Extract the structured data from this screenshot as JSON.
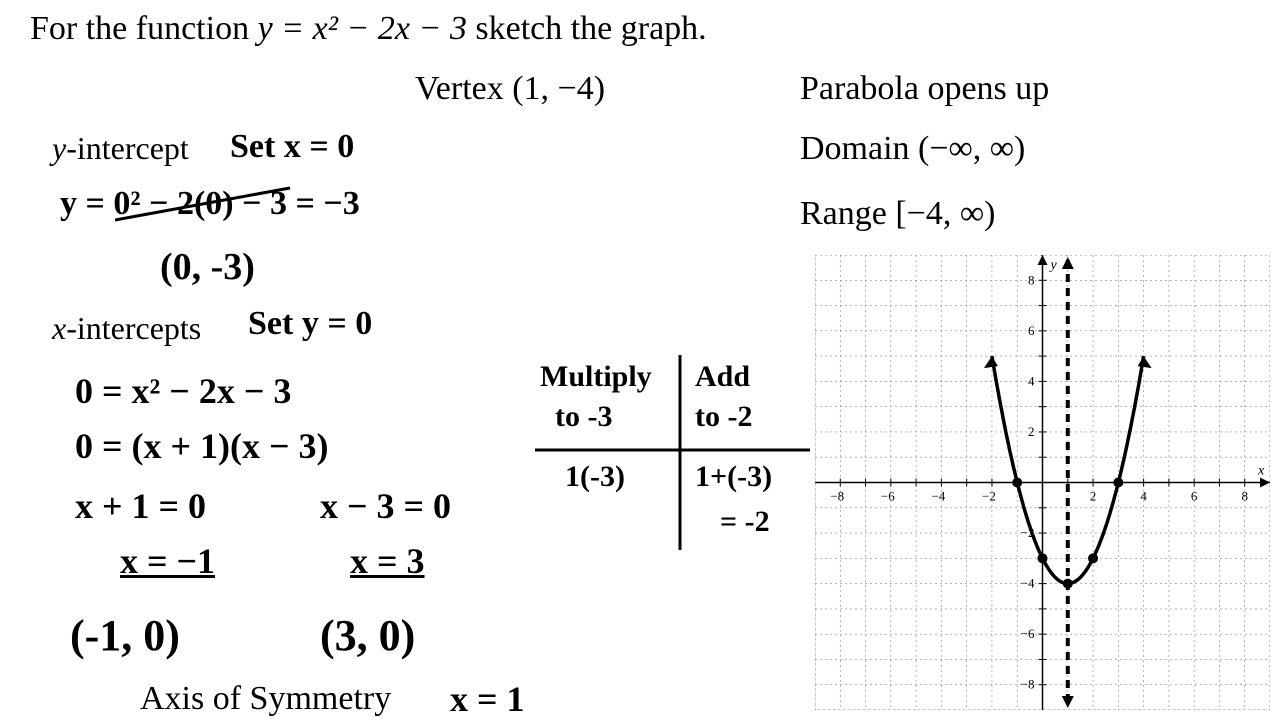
{
  "title_pre": "For the function  ",
  "title_fn": "y = x² − 2x − 3",
  "title_post": "  sketch the graph.",
  "vertex_label": "Vertex   (1, −4)",
  "opens": "Parabola opens up",
  "domain": "Domain   (−∞, ∞)",
  "range": "Range   [−4, ∞)",
  "yint_label": "y-intercept",
  "yint_set": "Set x = 0",
  "yint_eq": "y = 0² − 2(0) − 3  = −3",
  "yint_pt": "(0, -3)",
  "xint_label": "x-intercepts",
  "xint_set": "Set y = 0",
  "xint_eq1": "0 = x² − 2x − 3",
  "xint_eq2": "0 = (x + 1)(x − 3)",
  "xint_eq3a": "x + 1 = 0",
  "xint_eq3b": "x − 3 = 0",
  "xint_sol1": "x = −1",
  "xint_sol2": "x = 3",
  "xint_pt1": "(-1, 0)",
  "xint_pt2": "(3, 0)",
  "axis_label": "Axis of Symmetry",
  "axis_val": "x = 1",
  "hint_mult1": "Multiply",
  "hint_mult2": "to -3",
  "hint_add1": "Add",
  "hint_add2": "to -2",
  "hint_row1a": "1(-3)",
  "hint_row1b": "1+(-3)",
  "hint_row2b": "= -2",
  "graph": {
    "xmin": -9,
    "xmax": 9,
    "ymin": -9,
    "ymax": 9,
    "grid_color": "#888888",
    "axis_color": "#000000",
    "tick_labels_x": [
      -8,
      -6,
      -4,
      -2,
      2,
      4,
      6,
      8
    ],
    "tick_labels_y": [
      -8,
      -6,
      -4,
      -2,
      2,
      4,
      6,
      8
    ],
    "parabola_color": "#000000",
    "axis_sym_x": 1,
    "axis_sym_dash": "8 6",
    "points": [
      [
        -1,
        0
      ],
      [
        3,
        0
      ],
      [
        0,
        -3
      ],
      [
        2,
        -3
      ],
      [
        1,
        -4
      ]
    ],
    "point_color": "#000000"
  },
  "fontsize": {
    "printed_lg": 34,
    "printed_md": 32,
    "handwritten": 34
  }
}
